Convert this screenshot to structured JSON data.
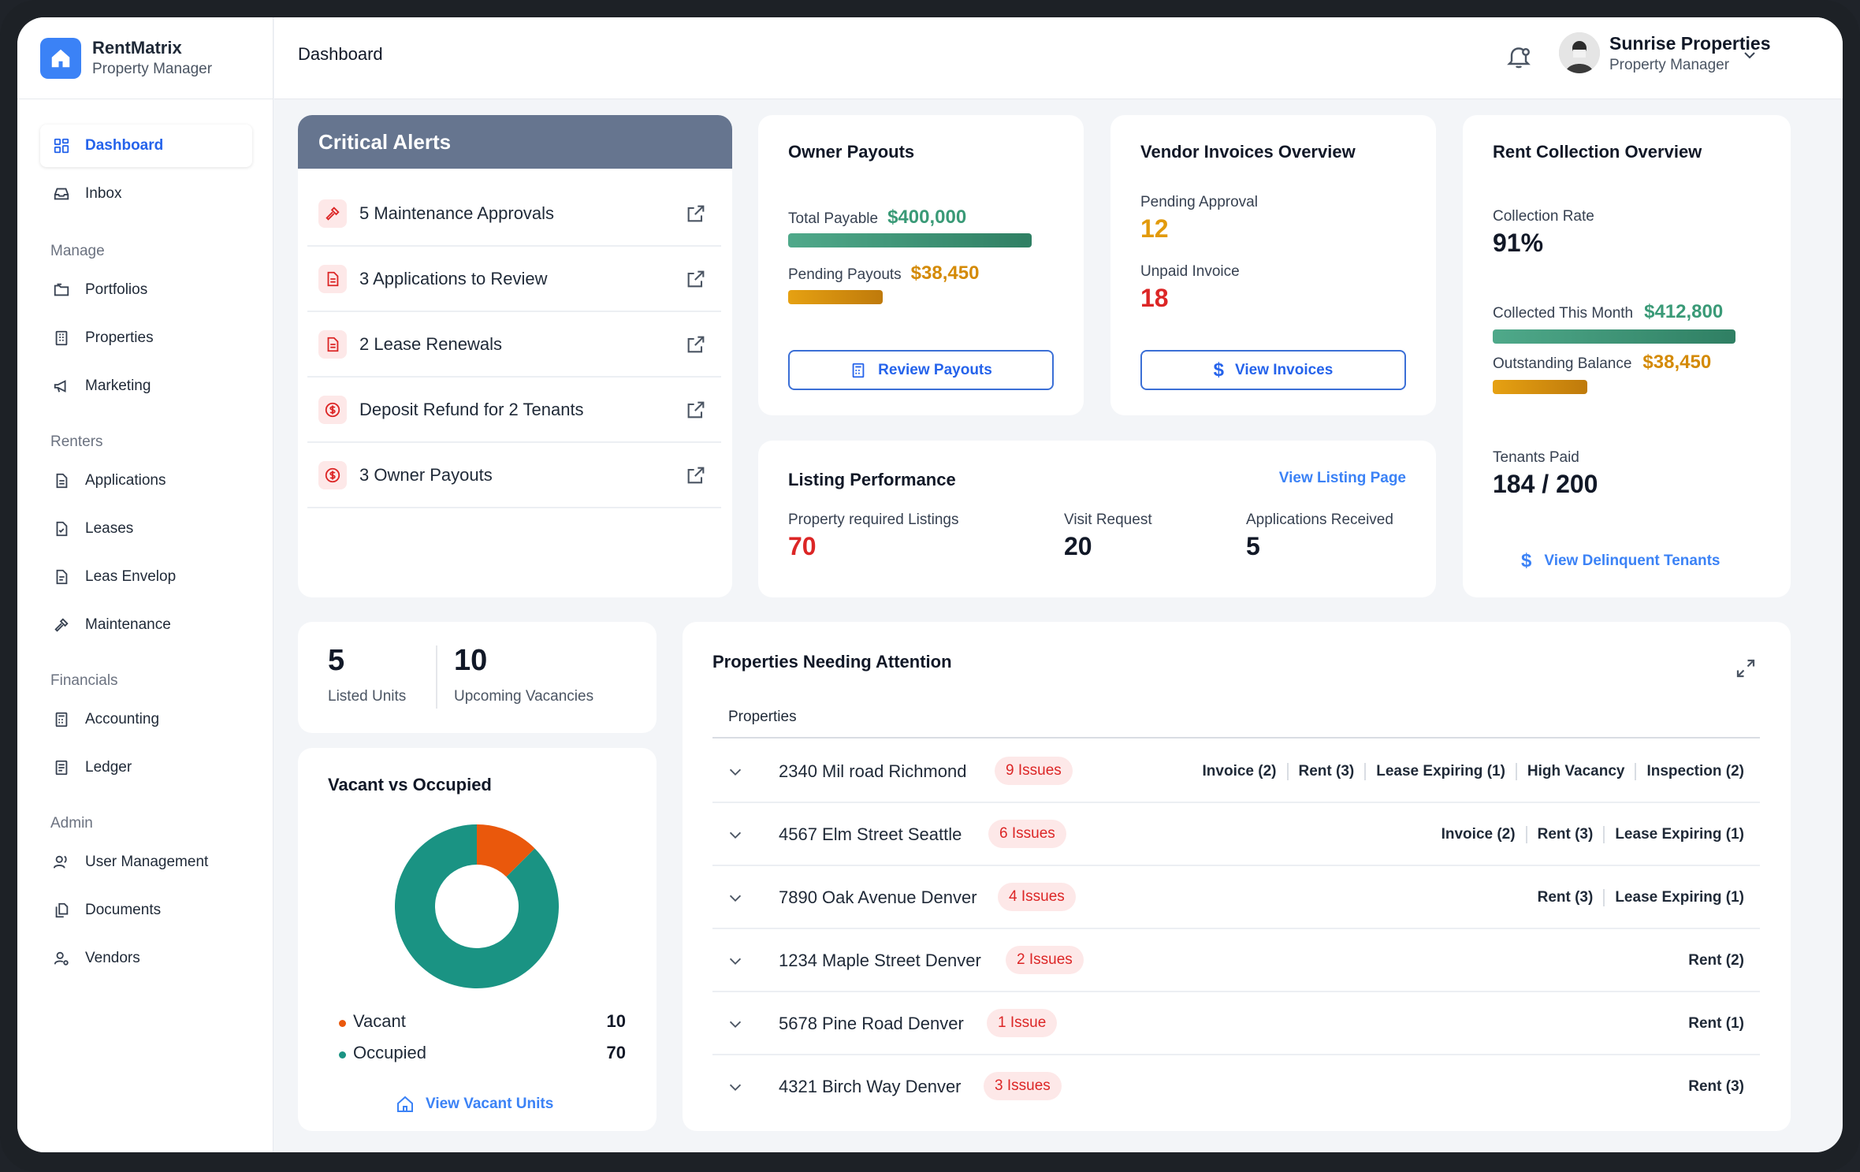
{
  "brand": {
    "name": "RentMatrix",
    "subtitle": "Property Manager"
  },
  "header": {
    "title": "Dashboard",
    "user_name": "Sunrise Properties",
    "user_role": "Property Manager"
  },
  "sidebar": {
    "items": [
      {
        "label": "Dashboard",
        "icon": "grid-icon"
      },
      {
        "label": "Inbox",
        "icon": "inbox-icon"
      }
    ],
    "sections": [
      {
        "title": "Manage",
        "items": [
          {
            "label": "Portfolios",
            "icon": "folder-icon"
          },
          {
            "label": "Properties",
            "icon": "building-icon"
          },
          {
            "label": "Marketing",
            "icon": "megaphone-icon"
          }
        ]
      },
      {
        "title": "Renters",
        "items": [
          {
            "label": "Applications",
            "icon": "file-icon"
          },
          {
            "label": "Leases",
            "icon": "lease-icon"
          },
          {
            "label": "Leas Envelop",
            "icon": "envelope-file-icon"
          },
          {
            "label": "Maintenance",
            "icon": "hammer-icon"
          }
        ]
      },
      {
        "title": "Financials",
        "items": [
          {
            "label": "Accounting",
            "icon": "calculator-icon"
          },
          {
            "label": "Ledger",
            "icon": "ledger-icon"
          }
        ]
      },
      {
        "title": "Admin",
        "items": [
          {
            "label": "User Management",
            "icon": "users-icon"
          },
          {
            "label": "Documents",
            "icon": "documents-icon"
          },
          {
            "label": "Vendors",
            "icon": "vendor-icon"
          }
        ]
      }
    ]
  },
  "alerts": {
    "title": "Critical Alerts",
    "items": [
      {
        "label": "5 Maintenance Approvals",
        "icon": "hammer-icon"
      },
      {
        "label": "3 Applications to Review",
        "icon": "file-icon"
      },
      {
        "label": "2 Lease Renewals",
        "icon": "file-icon"
      },
      {
        "label": "Deposit Refund for 2 Tenants",
        "icon": "dollar-circle-icon"
      },
      {
        "label": "3 Owner Payouts",
        "icon": "dollar-circle-icon"
      }
    ]
  },
  "owner_payouts": {
    "title": "Owner Payouts",
    "total_label": "Total Payable",
    "total_value": "$400,000",
    "total_fill": 1.0,
    "pending_label": "Pending Payouts",
    "pending_value": "$38,450",
    "pending_fill": 0.096,
    "button": "Review Payouts"
  },
  "vendor_invoices": {
    "title": "Vendor Invoices Overview",
    "pending_label": "Pending Approval",
    "pending_value": "12",
    "unpaid_label": "Unpaid Invoice",
    "unpaid_value": "18",
    "button": "View Invoices"
  },
  "rent_collection": {
    "title": "Rent Collection Overview",
    "rate_label": "Collection Rate",
    "rate_value": "91%",
    "collected_label": "Collected This Month",
    "collected_value": "$412,800",
    "collected_fill": 1.0,
    "outstanding_label": "Outstanding Balance",
    "outstanding_value": "$38,450",
    "outstanding_fill": 0.093,
    "tenants_label": "Tenants Paid",
    "tenants_value": "184 / 200",
    "link": "View Delinquent Tenants"
  },
  "listing": {
    "title": "Listing Performance",
    "link": "View Listing Page",
    "stats": [
      {
        "label": "Property required Listings",
        "value": "70"
      },
      {
        "label": "Visit Request",
        "value": "20"
      },
      {
        "label": "Applications Received",
        "value": "5"
      }
    ]
  },
  "units": {
    "listed_value": "5",
    "listed_label": "Listed Units",
    "vacancies_value": "10",
    "vacancies_label": "Upcoming Vacancies"
  },
  "vacancy": {
    "title": "Vacant vs Occupied",
    "legend": [
      {
        "label": "Vacant",
        "value": "10",
        "color": "#ea580c"
      },
      {
        "label": "Occupied",
        "value": "70",
        "color": "#1a9383"
      }
    ],
    "link": "View Vacant Units"
  },
  "chart_data": {
    "type": "pie",
    "categories": [
      "Vacant",
      "Occupied"
    ],
    "values": [
      10,
      70
    ],
    "title": "Vacant vs Occupied",
    "note_colors": {
      "Vacant": "#ea580c",
      "Occupied": "#1a9383"
    }
  },
  "attention": {
    "title": "Properties Needing Attention",
    "column": "Properties",
    "rows": [
      {
        "name": "2340 Mil road Richmond",
        "badge": "9 Issues",
        "tags": [
          "Invoice (2)",
          "Rent (3)",
          "Lease Expiring (1)",
          "High Vacancy",
          "Inspection (2)"
        ]
      },
      {
        "name": "4567 Elm Street Seattle",
        "badge": "6 Issues",
        "tags": [
          "Invoice (2)",
          "Rent (3)",
          "Lease Expiring (1)"
        ]
      },
      {
        "name": "7890 Oak Avenue Denver",
        "badge": "4 Issues",
        "tags": [
          "Rent (3)",
          "Lease Expiring (1)"
        ]
      },
      {
        "name": "1234 Maple Street Denver",
        "badge": "2 Issues",
        "tags": [
          "Rent (2)"
        ]
      },
      {
        "name": "5678 Pine Road Denver",
        "badge": "1 Issue",
        "tags": [
          "Rent (1)"
        ]
      },
      {
        "name": "4321 Birch Way Denver",
        "badge": "3 Issues",
        "tags": [
          "Rent (3)"
        ]
      }
    ]
  },
  "colors": {
    "primary": "#3b82f6",
    "danger": "#dc2626",
    "warning": "#e29a0b",
    "success": "#3a9a77",
    "alerts_header": "#66758f"
  }
}
